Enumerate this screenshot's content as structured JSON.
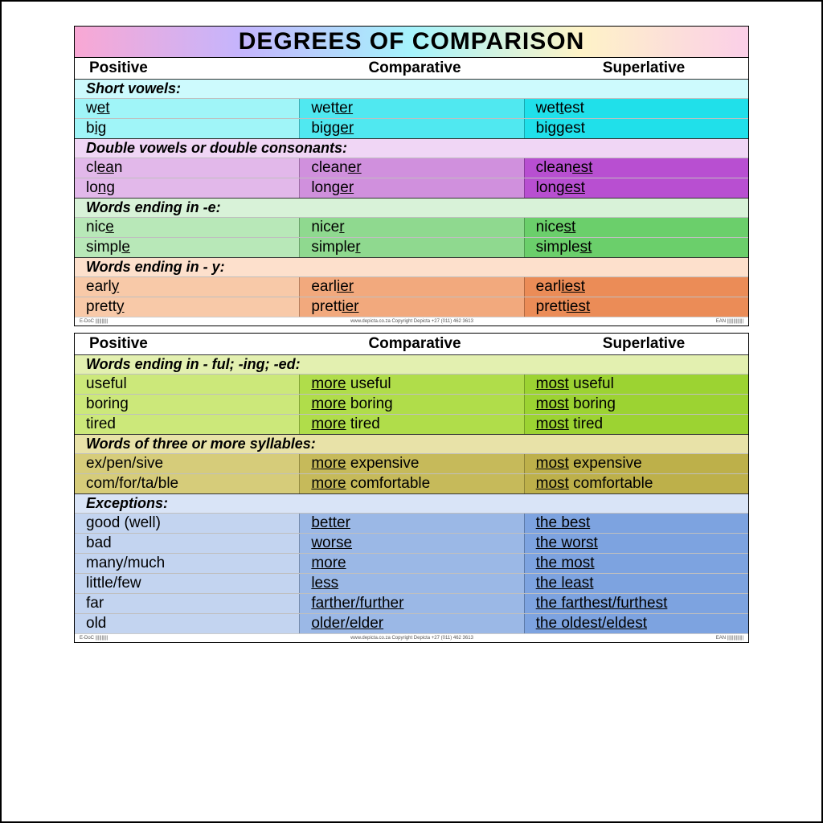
{
  "title": "DEGREES OF COMPARISON",
  "headers": {
    "pos": "Positive",
    "comp": "Comparative",
    "sup": "Superlative"
  },
  "posters": [
    {
      "showTitle": true,
      "sections": [
        {
          "label": "Short vowels:",
          "labelBg": "#cdfafd",
          "rows": [
            {
              "bg": [
                "#a0f5f8",
                "#50e8f0",
                "#20e0ea"
              ],
              "cells": [
                [
                  "w",
                  "et",
                  ""
                ],
                [
                  "wet",
                  "ter",
                  ""
                ],
                [
                  "wet",
                  "t",
                  "est"
                ]
              ]
            },
            {
              "bg": [
                "#a0f5f8",
                "#50e8f0",
                "#20e0ea"
              ],
              "cells": [
                [
                  "b",
                  "ig",
                  ""
                ],
                [
                  "big",
                  "ger",
                  ""
                ],
                [
                  "big",
                  "g",
                  "est"
                ]
              ]
            }
          ]
        },
        {
          "label": "Double vowels or double consonants:",
          "labelBg": "#f0d6f5",
          "rows": [
            {
              "bg": [
                "#e2b8ea",
                "#d090dd",
                "#b84fd1"
              ],
              "cells": [
                [
                  "cl",
                  "ea",
                  "n"
                ],
                [
                  "clean",
                  "er",
                  ""
                ],
                [
                  "clean",
                  "est",
                  ""
                ]
              ]
            },
            {
              "bg": [
                "#e2b8ea",
                "#d090dd",
                "#b84fd1"
              ],
              "cells": [
                [
                  "lo",
                  "ng",
                  ""
                ],
                [
                  "long",
                  "er",
                  ""
                ],
                [
                  "long",
                  "est",
                  ""
                ]
              ]
            }
          ]
        },
        {
          "label": "Words ending in -e:",
          "labelBg": "#d8f2d8",
          "rows": [
            {
              "bg": [
                "#b8e8b8",
                "#8fd98f",
                "#6bcf6b"
              ],
              "cells": [
                [
                  "nic",
                  "e",
                  ""
                ],
                [
                  "nice",
                  "r",
                  ""
                ],
                [
                  "nice",
                  "st",
                  ""
                ]
              ]
            },
            {
              "bg": [
                "#b8e8b8",
                "#8fd98f",
                "#6bcf6b"
              ],
              "cells": [
                [
                  "simpl",
                  "e",
                  ""
                ],
                [
                  "simple",
                  "r",
                  ""
                ],
                [
                  "simple",
                  "st",
                  ""
                ]
              ]
            }
          ]
        },
        {
          "label": "Words ending in  - y:",
          "labelBg": "#fde0cc",
          "rows": [
            {
              "bg": [
                "#f8c9a8",
                "#f2a97d",
                "#eb8c57"
              ],
              "cells": [
                [
                  "earl",
                  "y",
                  ""
                ],
                [
                  "earl",
                  "ier",
                  ""
                ],
                [
                  "earl",
                  "iest",
                  ""
                ]
              ]
            },
            {
              "bg": [
                "#f8c9a8",
                "#f2a97d",
                "#eb8c57"
              ],
              "cells": [
                [
                  "prett",
                  "y",
                  ""
                ],
                [
                  "prett",
                  "ier",
                  ""
                ],
                [
                  "prett",
                  "iest",
                  ""
                ]
              ]
            }
          ]
        }
      ],
      "footer": [
        "E-DoC ||||||||||",
        "www.depicta.co.za     Copyright  Depicta  +27 (011) 462 3613",
        "EAN |||||||||||||"
      ]
    },
    {
      "showTitle": false,
      "sections": [
        {
          "label": "Words ending in  - ful;  -ing;  -ed:",
          "labelBg": "#e3f0b0",
          "rows": [
            {
              "bg": [
                "#cce87a",
                "#b0dd4a",
                "#9cd332"
              ],
              "cells": [
                [
                  "useful",
                  "",
                  ""
                ],
                [
                  "",
                  "more",
                  " useful"
                ],
                [
                  "",
                  "most",
                  " useful"
                ]
              ]
            },
            {
              "bg": [
                "#cce87a",
                "#b0dd4a",
                "#9cd332"
              ],
              "cells": [
                [
                  "boring",
                  "",
                  ""
                ],
                [
                  "",
                  "more",
                  " boring"
                ],
                [
                  "",
                  "most",
                  " boring"
                ]
              ]
            },
            {
              "bg": [
                "#cce87a",
                "#b0dd4a",
                "#9cd332"
              ],
              "cells": [
                [
                  "tired",
                  "",
                  ""
                ],
                [
                  "",
                  "more",
                  " tired"
                ],
                [
                  "",
                  "most",
                  " tired"
                ]
              ]
            }
          ]
        },
        {
          "label": "Words of three or more syllables:",
          "labelBg": "#e8e2a8",
          "rows": [
            {
              "bg": [
                "#d6cc7a",
                "#c6ba5a",
                "#bdb04a"
              ],
              "cells": [
                [
                  "ex/pen/sive",
                  "",
                  ""
                ],
                [
                  "",
                  "more",
                  " expensive"
                ],
                [
                  "",
                  "most",
                  " expensive"
                ]
              ]
            },
            {
              "bg": [
                "#d6cc7a",
                "#c6ba5a",
                "#bdb04a"
              ],
              "cells": [
                [
                  "com/for/ta/ble",
                  "",
                  ""
                ],
                [
                  "",
                  "more",
                  " comfortable"
                ],
                [
                  "",
                  "most",
                  " comfortable"
                ]
              ]
            }
          ]
        },
        {
          "label": "Exceptions:",
          "labelBg": "#d9e4f7",
          "rows": [
            {
              "bg": [
                "#c3d4f0",
                "#9bb8e6",
                "#7da3e0"
              ],
              "cells": [
                [
                  "good (well)",
                  "",
                  ""
                ],
                [
                  "",
                  "better",
                  ""
                ],
                [
                  "",
                  "the best",
                  ""
                ]
              ]
            },
            {
              "bg": [
                "#c3d4f0",
                "#9bb8e6",
                "#7da3e0"
              ],
              "cells": [
                [
                  "bad",
                  "",
                  ""
                ],
                [
                  "",
                  "worse",
                  ""
                ],
                [
                  "",
                  "the worst",
                  ""
                ]
              ]
            },
            {
              "bg": [
                "#c3d4f0",
                "#9bb8e6",
                "#7da3e0"
              ],
              "cells": [
                [
                  "many/much",
                  "",
                  ""
                ],
                [
                  "",
                  "more",
                  ""
                ],
                [
                  "",
                  "the most",
                  ""
                ]
              ]
            },
            {
              "bg": [
                "#c3d4f0",
                "#9bb8e6",
                "#7da3e0"
              ],
              "cells": [
                [
                  "little/few",
                  "",
                  ""
                ],
                [
                  "",
                  "less",
                  ""
                ],
                [
                  "",
                  "the least",
                  ""
                ]
              ]
            },
            {
              "bg": [
                "#c3d4f0",
                "#9bb8e6",
                "#7da3e0"
              ],
              "cells": [
                [
                  "far",
                  "",
                  ""
                ],
                [
                  "",
                  "farther/further",
                  ""
                ],
                [
                  "",
                  "the farthest/furthest",
                  ""
                ]
              ]
            },
            {
              "bg": [
                "#c3d4f0",
                "#9bb8e6",
                "#7da3e0"
              ],
              "cells": [
                [
                  "old",
                  "",
                  ""
                ],
                [
                  "",
                  "older/elder",
                  ""
                ],
                [
                  "",
                  "the oldest/eldest",
                  ""
                ]
              ]
            }
          ]
        }
      ],
      "footer": [
        "E-DoC ||||||||||",
        "www.depicta.co.za     Copyright  Depicta  +27 (011) 462 3613",
        "EAN |||||||||||||"
      ]
    }
  ]
}
